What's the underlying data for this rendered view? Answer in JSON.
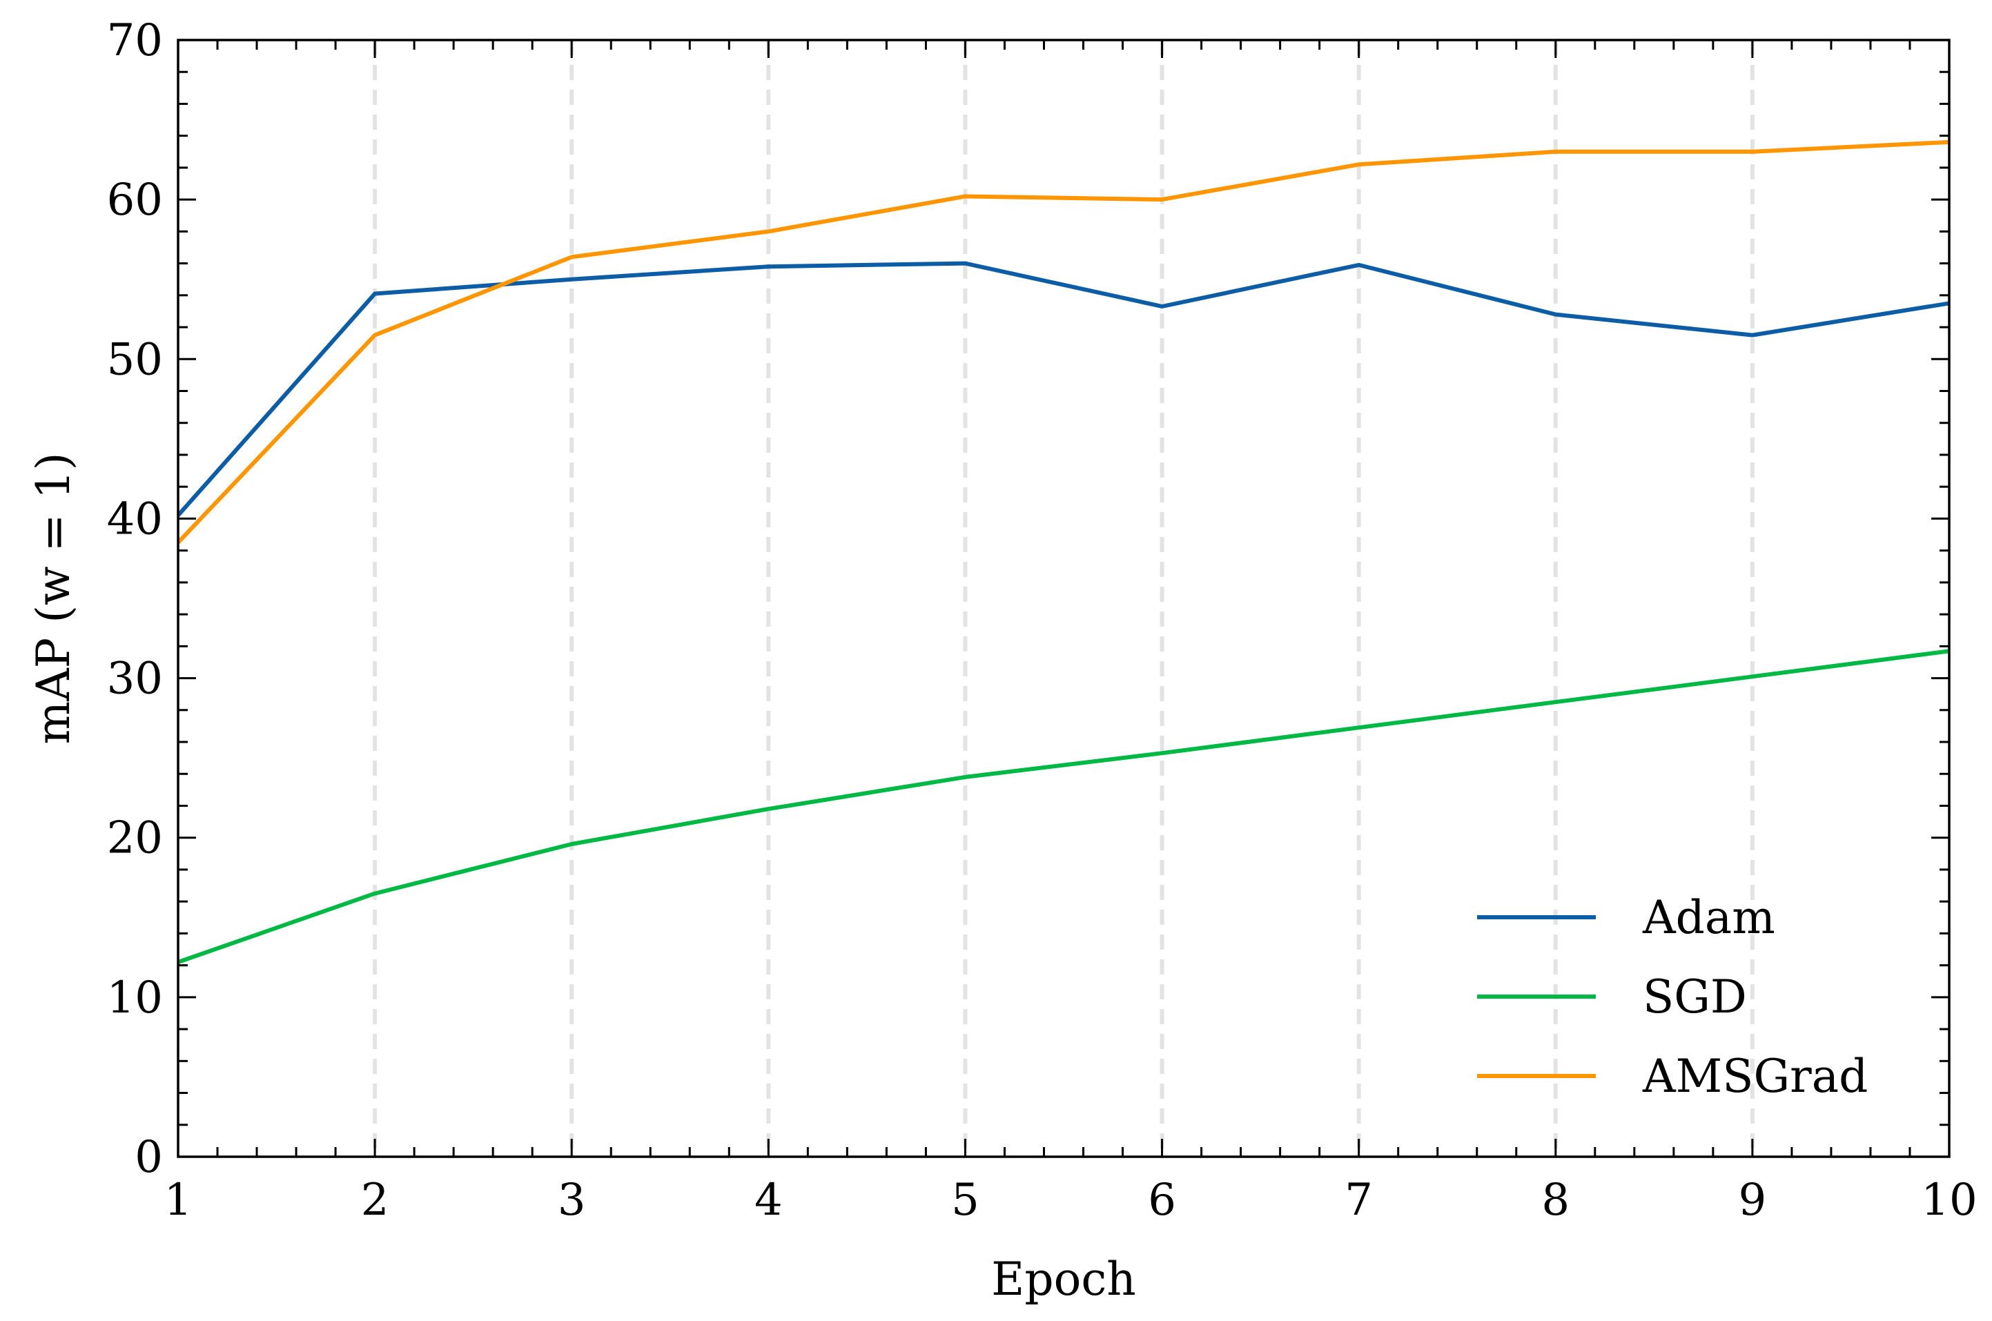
{
  "chart_data": {
    "type": "line",
    "title": "",
    "xlabel": "Epoch",
    "ylabel": "mAP (w = 1)",
    "x": [
      1,
      2,
      3,
      4,
      5,
      6,
      7,
      8,
      9,
      10
    ],
    "xlim": [
      1,
      10
    ],
    "ylim": [
      0,
      70
    ],
    "xticks": [
      1,
      2,
      3,
      4,
      5,
      6,
      7,
      8,
      9,
      10
    ],
    "yticks": [
      0,
      10,
      20,
      30,
      40,
      50,
      60,
      70
    ],
    "grid": "vertical dashed",
    "legend_position": "lower-right",
    "series": [
      {
        "name": "Adam",
        "color": "#0C5DA5",
        "values": [
          40.2,
          54.1,
          55.0,
          55.8,
          56.0,
          53.3,
          55.9,
          52.8,
          51.5,
          53.5
        ]
      },
      {
        "name": "SGD",
        "color": "#00B945",
        "values": [
          12.2,
          16.5,
          19.6,
          21.8,
          23.8,
          25.3,
          26.9,
          28.5,
          30.1,
          31.7
        ]
      },
      {
        "name": "AMSGrad",
        "color": "#FF9500",
        "values": [
          38.5,
          51.5,
          56.4,
          58.0,
          60.2,
          60.0,
          62.2,
          63.0,
          63.0,
          63.6
        ]
      }
    ]
  }
}
